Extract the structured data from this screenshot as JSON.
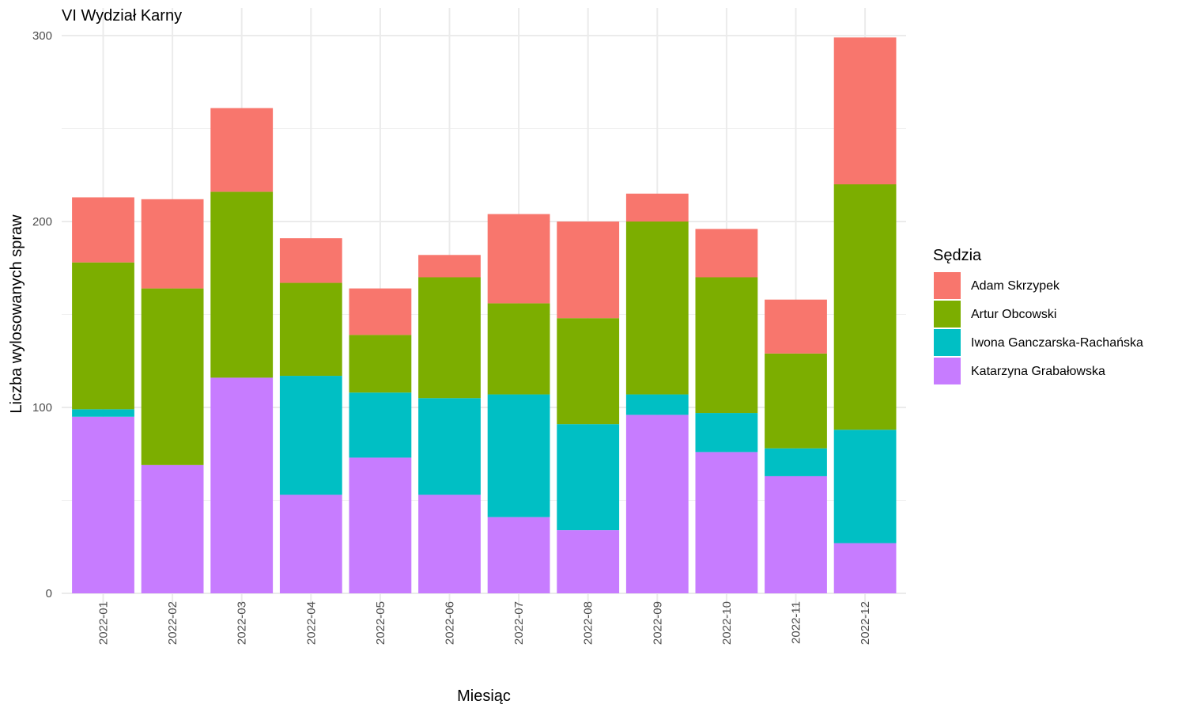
{
  "chart_data": {
    "type": "bar",
    "stacked": true,
    "title": "VI Wydział Karny",
    "xlabel": "Miesiąc",
    "ylabel": "Liczba wylosowanych spraw",
    "ylim": [
      0,
      300
    ],
    "y_ticks": [
      0,
      100,
      200,
      300
    ],
    "grid": true,
    "legend": {
      "title": "Sędzia",
      "position": "right"
    },
    "categories": [
      "2022-01",
      "2022-02",
      "2022-03",
      "2022-04",
      "2022-05",
      "2022-06",
      "2022-07",
      "2022-08",
      "2022-09",
      "2022-10",
      "2022-11",
      "2022-12"
    ],
    "series": [
      {
        "name": "Katarzyna Grabałowska",
        "color": "#C77CFF",
        "values": [
          95,
          69,
          116,
          53,
          73,
          53,
          41,
          34,
          96,
          76,
          63,
          27
        ]
      },
      {
        "name": "Iwona Ganczarska-Rachańska",
        "color": "#00BFC4",
        "values": [
          4,
          0,
          0,
          64,
          35,
          52,
          66,
          57,
          11,
          21,
          15,
          61
        ]
      },
      {
        "name": "Artur Obcowski",
        "color": "#7CAE00",
        "values": [
          79,
          95,
          100,
          50,
          31,
          65,
          49,
          57,
          93,
          73,
          51,
          132
        ]
      },
      {
        "name": "Adam Skrzypek",
        "color": "#F8766D",
        "values": [
          35,
          48,
          45,
          24,
          25,
          12,
          48,
          52,
          15,
          26,
          29,
          79
        ]
      }
    ]
  }
}
